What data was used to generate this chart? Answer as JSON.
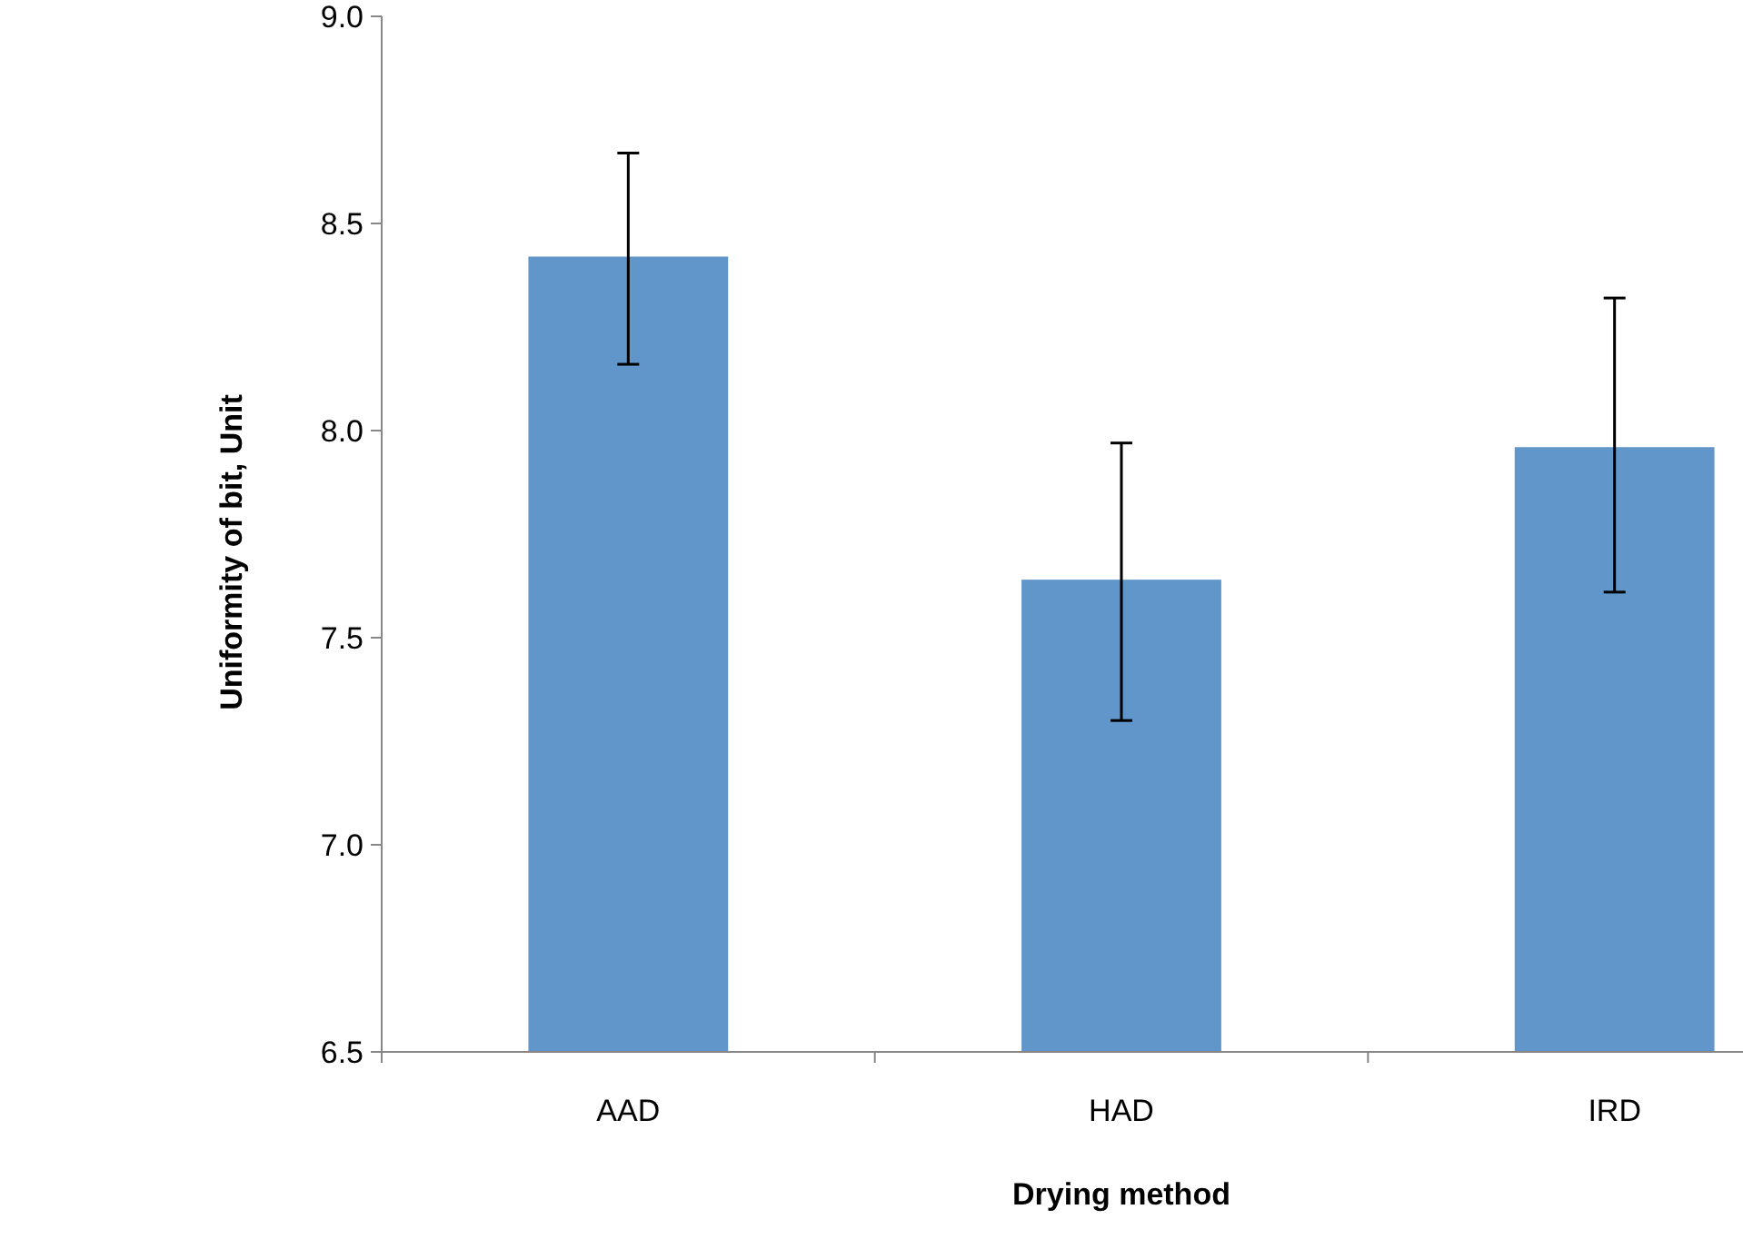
{
  "chart_data": {
    "type": "bar",
    "xlabel": "Drying method",
    "ylabel": "Uniformity of bit, Unit",
    "categories": [
      "AAD",
      "HAD",
      "IRD"
    ],
    "values": [
      8.42,
      7.64,
      7.96
    ],
    "errors": [
      [
        8.16,
        8.67
      ],
      [
        7.3,
        7.97
      ],
      [
        7.61,
        8.32
      ]
    ],
    "color": "#6096c9",
    "ylim": [
      6.5,
      9.0
    ],
    "yticks": [
      {
        "value": 6.5,
        "label": "6.5"
      },
      {
        "value": 7,
        "label": "7.0"
      },
      {
        "value": 7.5,
        "label": "7.5"
      },
      {
        "value": 8,
        "label": "8.0"
      },
      {
        "value": 8.5,
        "label": "8.5"
      },
      {
        "value": 9,
        "label": "9.0"
      }
    ],
    "grid": false
  }
}
